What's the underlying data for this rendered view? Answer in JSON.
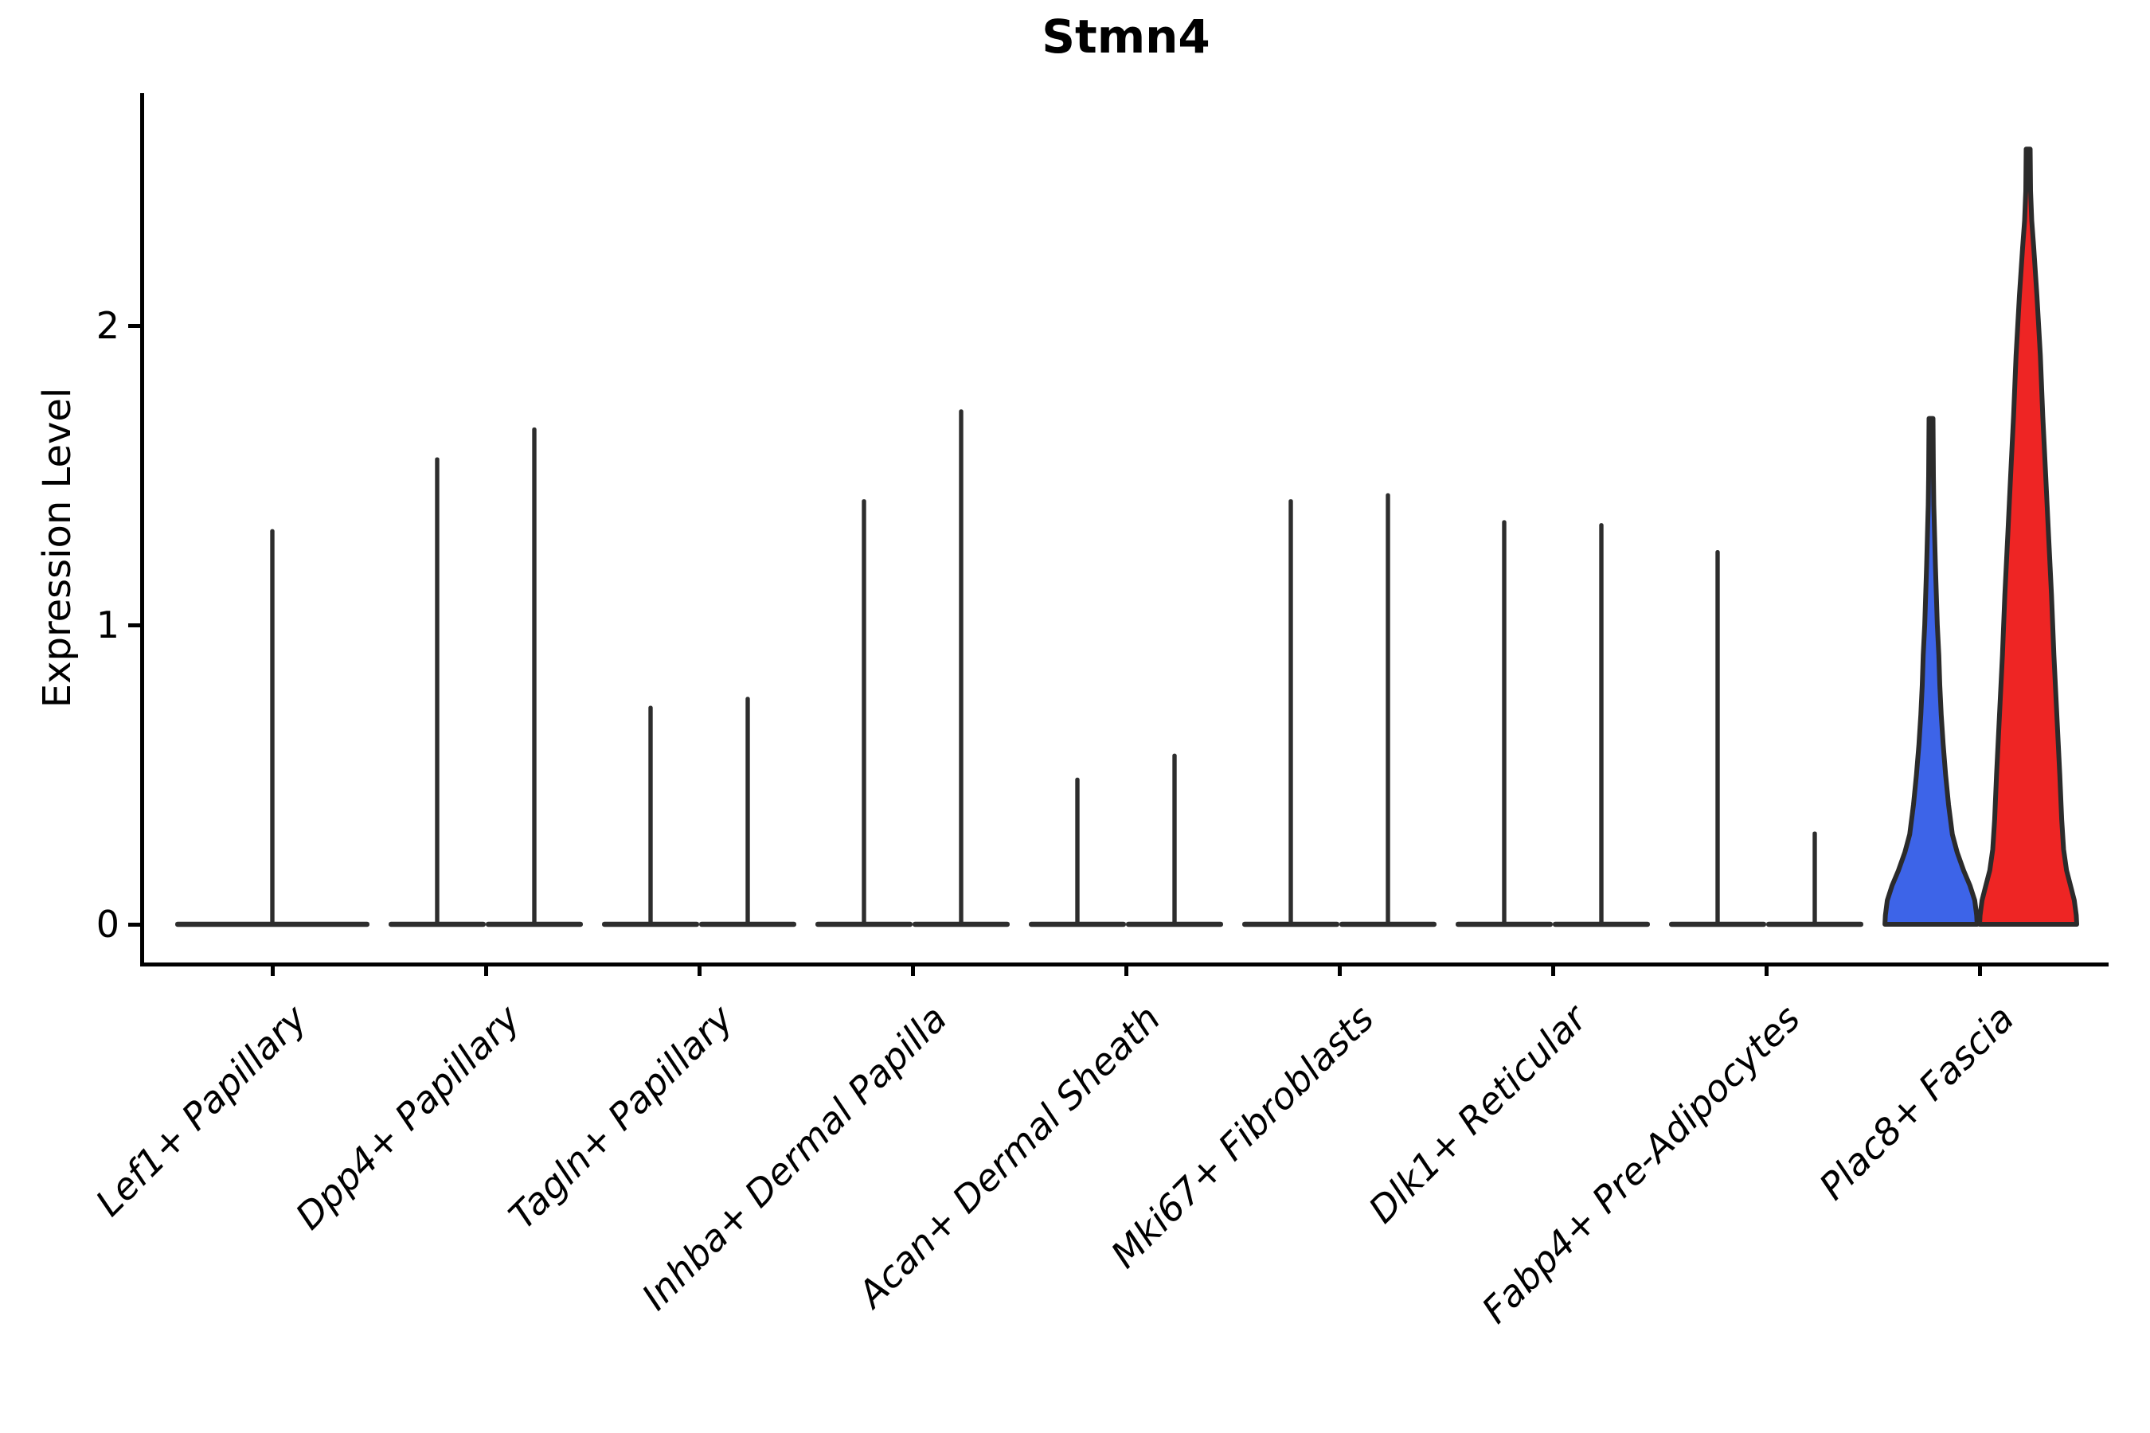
{
  "title": "Stmn4",
  "y_axis": {
    "label": "Expression Level",
    "tick_labels": [
      "0",
      "1",
      "2"
    ]
  },
  "x_axis": {
    "categories": [
      "Lef1+ Papillary",
      "Dpp4+ Papillary",
      "Tagln+ Papillary",
      "Inhba+ Dermal Papilla",
      "Acan+ Dermal Sheath",
      "Mki67+ Fibroblasts",
      "Dlk1+ Reticular",
      "Fabp4+ Pre-Adipocytes",
      "Plac8+ Fascia"
    ]
  },
  "colors": {
    "spike": "#2d2d2d",
    "outline": "#2b2b2b",
    "axis": "#000000",
    "blue_violin": "#3D64E8",
    "red_violin": "#EE2524"
  },
  "chart_data": {
    "type": "violin",
    "title": "Stmn4",
    "xlabel": "",
    "ylabel": "Expression Level",
    "yticks": [
      0,
      1,
      2
    ],
    "ylim": [
      -0.13,
      2.77
    ],
    "grid": false,
    "legend": "none",
    "categories": [
      "Lef1+ Papillary",
      "Dpp4+ Papillary",
      "Tagln+ Papillary",
      "Inhba+ Dermal Papilla",
      "Acan+ Dermal Sheath",
      "Mki67+ Fibroblasts",
      "Dlk1+ Reticular",
      "Fabp4+ Pre-Adipocytes",
      "Plac8+ Fascia"
    ],
    "violins": [
      {
        "category_index": 0,
        "category": "Lef1+ Papillary",
        "slot": "center",
        "style": "collapsed-spike",
        "color": "#2d2d2d",
        "max_expression": 1.32
      },
      {
        "category_index": 1,
        "category": "Dpp4+ Papillary",
        "slot": "left",
        "style": "collapsed-spike",
        "color": "#2d2d2d",
        "max_expression": 1.56
      },
      {
        "category_index": 1,
        "category": "Dpp4+ Papillary",
        "slot": "right",
        "style": "collapsed-spike",
        "color": "#2d2d2d",
        "max_expression": 1.66
      },
      {
        "category_index": 2,
        "category": "Tagln+ Papillary",
        "slot": "left",
        "style": "collapsed-spike",
        "color": "#2d2d2d",
        "max_expression": 0.73
      },
      {
        "category_index": 2,
        "category": "Tagln+ Papillary",
        "slot": "right",
        "style": "collapsed-spike",
        "color": "#2d2d2d",
        "max_expression": 0.76
      },
      {
        "category_index": 3,
        "category": "Inhba+ Dermal Papilla",
        "slot": "left",
        "style": "collapsed-spike",
        "color": "#2d2d2d",
        "max_expression": 1.42
      },
      {
        "category_index": 3,
        "category": "Inhba+ Dermal Papilla",
        "slot": "right",
        "style": "collapsed-spike",
        "color": "#2d2d2d",
        "max_expression": 1.72
      },
      {
        "category_index": 4,
        "category": "Acan+ Dermal Sheath",
        "slot": "left",
        "style": "collapsed-spike",
        "color": "#2d2d2d",
        "max_expression": 0.49
      },
      {
        "category_index": 4,
        "category": "Acan+ Dermal Sheath",
        "slot": "right",
        "style": "collapsed-spike",
        "color": "#2d2d2d",
        "max_expression": 0.57
      },
      {
        "category_index": 5,
        "category": "Mki67+ Fibroblasts",
        "slot": "left",
        "style": "collapsed-spike",
        "color": "#2d2d2d",
        "max_expression": 1.42
      },
      {
        "category_index": 5,
        "category": "Mki67+ Fibroblasts",
        "slot": "right",
        "style": "collapsed-spike",
        "color": "#2d2d2d",
        "max_expression": 1.44
      },
      {
        "category_index": 6,
        "category": "Dlk1+ Reticular",
        "slot": "left",
        "style": "collapsed-spike",
        "color": "#2d2d2d",
        "max_expression": 1.35
      },
      {
        "category_index": 6,
        "category": "Dlk1+ Reticular",
        "slot": "right",
        "style": "collapsed-spike",
        "color": "#2d2d2d",
        "max_expression": 1.34
      },
      {
        "category_index": 7,
        "category": "Fabp4+ Pre-Adipocytes",
        "slot": "left",
        "style": "collapsed-spike",
        "color": "#2d2d2d",
        "max_expression": 1.25
      },
      {
        "category_index": 7,
        "category": "Fabp4+ Pre-Adipocytes",
        "slot": "right",
        "style": "collapsed-spike",
        "color": "#2d2d2d",
        "max_expression": 0.31
      },
      {
        "category_index": 8,
        "category": "Plac8+ Fascia",
        "slot": "left",
        "style": "violin",
        "color": "#3D64E8",
        "max_expression": 1.69,
        "width_profile": [
          [
            0,
            0.95
          ],
          [
            0.03,
            0.94
          ],
          [
            0.08,
            0.9
          ],
          [
            0.13,
            0.8
          ],
          [
            0.18,
            0.67
          ],
          [
            0.24,
            0.54
          ],
          [
            0.3,
            0.44
          ],
          [
            0.4,
            0.36
          ],
          [
            0.5,
            0.3
          ],
          [
            0.6,
            0.25
          ],
          [
            0.7,
            0.21
          ],
          [
            0.8,
            0.18
          ],
          [
            0.9,
            0.16
          ],
          [
            1.0,
            0.13
          ],
          [
            1.1,
            0.11
          ],
          [
            1.2,
            0.09
          ],
          [
            1.3,
            0.074
          ],
          [
            1.4,
            0.057
          ],
          [
            1.5,
            0.049
          ],
          [
            1.69,
            0.041
          ]
        ]
      },
      {
        "category_index": 8,
        "category": "Plac8+ Fascia",
        "slot": "right",
        "style": "violin",
        "color": "#EE2524",
        "max_expression": 2.59,
        "width_profile": [
          [
            0,
            1.0
          ],
          [
            0.03,
            0.99
          ],
          [
            0.08,
            0.95
          ],
          [
            0.13,
            0.87
          ],
          [
            0.18,
            0.79
          ],
          [
            0.25,
            0.73
          ],
          [
            0.35,
            0.69
          ],
          [
            0.5,
            0.65
          ],
          [
            0.7,
            0.59
          ],
          [
            0.9,
            0.53
          ],
          [
            1.1,
            0.48
          ],
          [
            1.3,
            0.42
          ],
          [
            1.5,
            0.36
          ],
          [
            1.7,
            0.3
          ],
          [
            1.9,
            0.25
          ],
          [
            2.1,
            0.18
          ],
          [
            2.26,
            0.115
          ],
          [
            2.35,
            0.074
          ],
          [
            2.45,
            0.049
          ],
          [
            2.59,
            0.041
          ]
        ]
      }
    ]
  }
}
